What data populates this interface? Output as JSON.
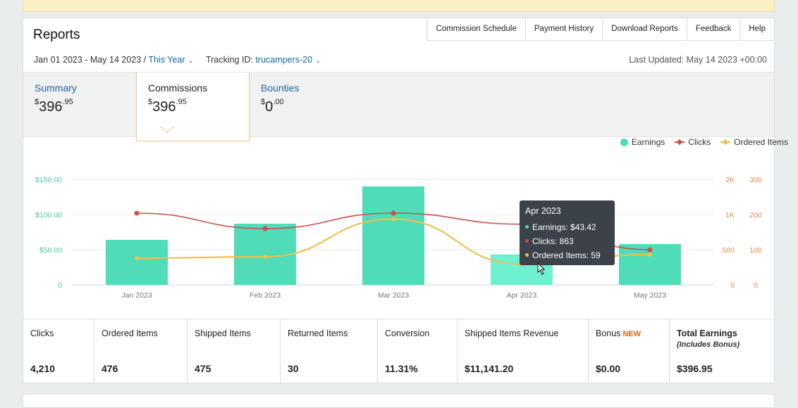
{
  "header": {
    "title": "Reports",
    "links": [
      "Commission Schedule",
      "Payment History",
      "Download Reports",
      "Feedback",
      "Help"
    ],
    "date_range": "Jan 01 2023 - May 14 2023 /",
    "range_preset": "This Year",
    "tracking_label": "Tracking ID:",
    "tracking_id": "trucampers-20",
    "last_updated": "Last Updated: May 14 2023 +00:00"
  },
  "tabs": [
    {
      "label": "Summary",
      "currency": "$",
      "amount": "396",
      "cents": ".95"
    },
    {
      "label": "Commissions",
      "currency": "$",
      "amount": "396",
      "cents": ".95"
    },
    {
      "label": "Bounties",
      "currency": "$",
      "amount": "0",
      "cents": ".00"
    }
  ],
  "chart_data": {
    "type": "bar",
    "categories": [
      "Jan 2023",
      "Feb 2023",
      "Mar 2023",
      "Apr 2023",
      "May 2023"
    ],
    "series": [
      {
        "name": "Earnings",
        "type": "bar",
        "axis": "left",
        "values": [
          64,
          87,
          140,
          43.42,
          58
        ]
      },
      {
        "name": "Clicks",
        "type": "line",
        "axis": "right-1",
        "values": [
          1040,
          800,
          1040,
          863,
          500
        ]
      },
      {
        "name": "Ordered Items",
        "type": "line",
        "axis": "right-2",
        "values": [
          76,
          80,
          187,
          59,
          86
        ]
      }
    ],
    "y_left": {
      "ticks": [
        "0",
        "$50.00",
        "$100.00",
        "$150.00"
      ],
      "range": [
        0,
        150
      ]
    },
    "y_right_1": {
      "ticks": [
        "0",
        "500",
        "1K",
        "2K"
      ]
    },
    "y_right_2": {
      "ticks": [
        "0",
        "100",
        "200",
        "300"
      ],
      "range": [
        0,
        300
      ]
    },
    "legend_position": "top-right",
    "colors": {
      "earnings": "#4fdcb9",
      "earnings_hover": "#6ff0d0",
      "clicks": "#c9504b",
      "ordered": "#f0c04c",
      "left_axis": "#4cc7a3",
      "right_axis": "#e08a52"
    },
    "tooltip": {
      "title": "Apr 2023",
      "rows": [
        "Earnings: $43.42",
        "Clicks: 863",
        "Ordered Items: 59"
      ]
    }
  },
  "stats": [
    {
      "label": "Clicks",
      "value": "4,210"
    },
    {
      "label": "Ordered Items",
      "value": "476"
    },
    {
      "label": "Shipped Items",
      "value": "475"
    },
    {
      "label": "Returned Items",
      "value": "30"
    },
    {
      "label": "Conversion",
      "value": "11.31%"
    },
    {
      "label": "Shipped Items Revenue",
      "value": "$11,141.20"
    },
    {
      "label": "Bonus",
      "badge": "NEW",
      "value": "$0.00"
    },
    {
      "label": "Total Earnings",
      "sublabel": "(Includes Bonus)",
      "value": "$396.95"
    }
  ]
}
